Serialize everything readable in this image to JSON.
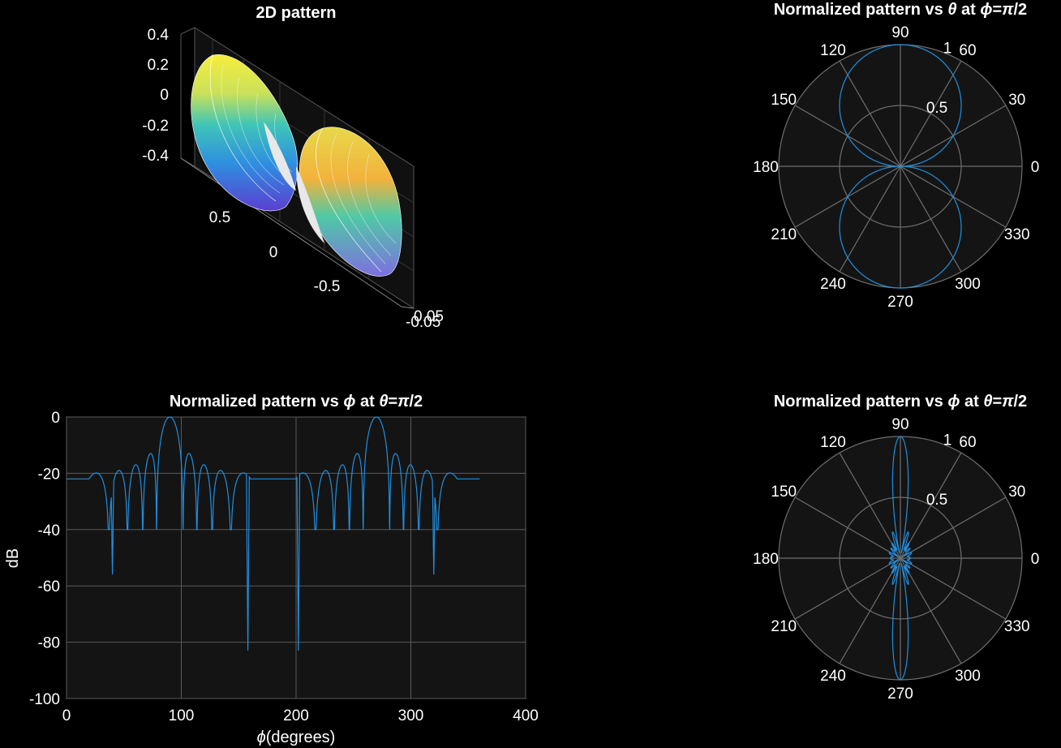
{
  "colors": {
    "background": "#000000",
    "axes_bg": "#141414",
    "grid": "#6e6e6e",
    "line": "#1f8fe0",
    "text": "#ffffff"
  },
  "surface3d": {
    "title": "2D pattern",
    "z_ticks": [
      "0.4",
      "0.2",
      "0",
      "-0.2",
      "-0.4"
    ],
    "y_ticks": [
      "0.5",
      "0",
      "-0.5"
    ],
    "x_ticks": [
      "0.05",
      "-0.05"
    ],
    "colormap": [
      "#3b2fa8",
      "#2f7ee0",
      "#1fb5c9",
      "#6fd08c",
      "#e5d84a",
      "#f7ee3c"
    ]
  },
  "polar_top": {
    "title_parts": [
      "Normalized  pattern  vs  ",
      "θ",
      "  at  ",
      "ϕ",
      "=",
      "π",
      "/2"
    ],
    "angle_ticks": [
      "0",
      "30",
      "60",
      "90",
      "120",
      "150",
      "180",
      "210",
      "240",
      "270",
      "300",
      "330"
    ],
    "r_ticks": [
      "0.5",
      "1"
    ],
    "rlim": [
      0,
      1
    ],
    "series": "sin(theta) — circle through origin, max 1 at 90"
  },
  "polar_bottom": {
    "title_parts": [
      "Normalized  pattern  vs  ",
      "ϕ",
      "  at  ",
      "θ",
      "=",
      "π",
      "/2"
    ],
    "angle_ticks": [
      "0",
      "30",
      "60",
      "90",
      "120",
      "150",
      "180",
      "210",
      "240",
      "270",
      "300",
      "330"
    ],
    "r_ticks": [
      "0.5",
      "1"
    ],
    "rlim": [
      0,
      1
    ]
  },
  "chart_data": [
    {
      "type": "line",
      "title_parts": [
        "Normalized  pattern  vs  ",
        "ϕ",
        "  at  ",
        "θ",
        "=",
        "π",
        "/2"
      ],
      "xlabel_parts": [
        "ϕ",
        "(degrees)"
      ],
      "ylabel": "dB",
      "xlim": [
        0,
        400
      ],
      "ylim": [
        -100,
        0
      ],
      "xticks": [
        "0",
        "100",
        "200",
        "300",
        "400"
      ],
      "yticks": [
        "0",
        "-20",
        "-40",
        "-60",
        "-80",
        "-100"
      ],
      "grid": true,
      "x_range": [
        0,
        360
      ],
      "peaks_deg": [
        90,
        270
      ],
      "floor_db": -22,
      "deep_nulls": [
        [
          40,
          -56
        ],
        [
          158,
          -83
        ],
        [
          202,
          -83
        ],
        [
          320,
          -56
        ]
      ]
    }
  ]
}
